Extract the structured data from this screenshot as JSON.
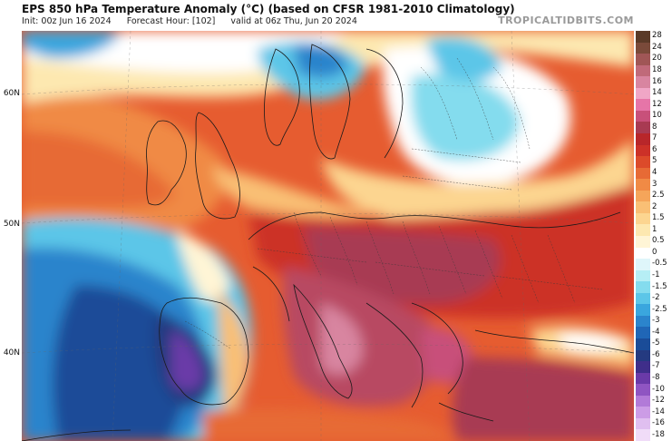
{
  "header": {
    "title": "EPS 850 hPa Temperature Anomaly (°C) (based on CFSR 1981-2010 Climatology)",
    "init": "Init: 00z Jun 16 2024",
    "forecast_hour": "Forecast Hour: [102]",
    "valid": "valid at 06z Thu, Jun 20 2024",
    "brand": "TROPICALTIDBITS.COM"
  },
  "map": {
    "lat_labels": [
      "60N",
      "50N",
      "40N"
    ]
  },
  "colorbar": {
    "levels": [
      {
        "label": "28",
        "color": "#5a3a28"
      },
      {
        "label": "24",
        "color": "#7a4a3a"
      },
      {
        "label": "20",
        "color": "#a05656"
      },
      {
        "label": "18",
        "color": "#c06a7a"
      },
      {
        "label": "16",
        "color": "#d885a0"
      },
      {
        "label": "14",
        "color": "#f0a6c6"
      },
      {
        "label": "12",
        "color": "#e675a8"
      },
      {
        "label": "10",
        "color": "#c8507a"
      },
      {
        "label": "8",
        "color": "#a83a52"
      },
      {
        "label": "7",
        "color": "#b8262a"
      },
      {
        "label": "6",
        "color": "#cc3128"
      },
      {
        "label": "5",
        "color": "#dc4a2a"
      },
      {
        "label": "4",
        "color": "#e76a35"
      },
      {
        "label": "3",
        "color": "#f08a45"
      },
      {
        "label": "2.5",
        "color": "#f5a55a"
      },
      {
        "label": "2",
        "color": "#f9bf75"
      },
      {
        "label": "1.5",
        "color": "#fcd590"
      },
      {
        "label": "1",
        "color": "#fde8b0"
      },
      {
        "label": "0.5",
        "color": "#fff5d6"
      },
      {
        "label": "0",
        "color": "#ffffff"
      },
      {
        "label": "-0.5",
        "color": "#dff6fa"
      },
      {
        "label": "-1",
        "color": "#b6eef5"
      },
      {
        "label": "-1.5",
        "color": "#84dcee"
      },
      {
        "label": "-2",
        "color": "#5cc6e8"
      },
      {
        "label": "-2.5",
        "color": "#3aa6de"
      },
      {
        "label": "-3",
        "color": "#2b84cc"
      },
      {
        "label": "-4",
        "color": "#2066b6"
      },
      {
        "label": "-5",
        "color": "#1a4c98"
      },
      {
        "label": "-6",
        "color": "#243a80"
      },
      {
        "label": "-7",
        "color": "#3f2e8a"
      },
      {
        "label": "-8",
        "color": "#6a3aa8"
      },
      {
        "label": "-10",
        "color": "#8f55c2"
      },
      {
        "label": "-12",
        "color": "#b27ad8"
      },
      {
        "label": "-14",
        "color": "#cc9ce6"
      },
      {
        "label": "-16",
        "color": "#e0bff0"
      },
      {
        "label": "-18",
        "color": "#f0dcf8"
      }
    ]
  }
}
